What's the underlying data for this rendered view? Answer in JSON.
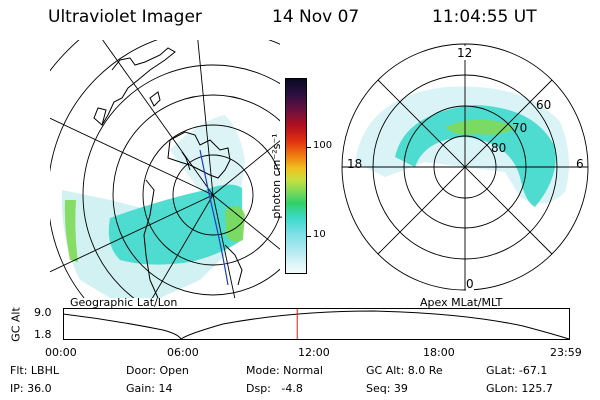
{
  "header": {
    "instrument": "Ultraviolet Imager",
    "date": "14 Nov 07",
    "time": "11:04:55 UT"
  },
  "geographic_panel": {
    "caption": "Geographic Lat/Lon"
  },
  "colorbar": {
    "unit_label": "photon cm⁻²s⁻¹",
    "tick_labels": [
      "100",
      "10"
    ]
  },
  "polar_panel": {
    "caption": "Apex MLat/MLT",
    "mlt_labels": {
      "top": "12",
      "left": "18",
      "right": "6",
      "bottom": "0"
    },
    "lat_labels": [
      "60",
      "70",
      "80"
    ]
  },
  "altitude_plot": {
    "ylabel": "GC Alt",
    "ytick_labels": [
      "9.0",
      "1.8"
    ],
    "xtick_labels": [
      "00:00",
      "06:00",
      "12:00",
      "18:00",
      "23:59"
    ],
    "current_time_fraction": 0.4618
  },
  "info_rows": [
    [
      {
        "text": "Flt: LBHL"
      },
      {
        "text": "Door: Open"
      },
      {
        "text": "Mode: Normal"
      },
      {
        "text": "GC Alt: 8.0 Re"
      },
      {
        "text": "GLat: -67.1"
      }
    ],
    [
      {
        "text": "IP: 36.0"
      },
      {
        "text": "Gain: 14"
      },
      {
        "text": "Dsp:   -4.8"
      },
      {
        "text": "Seq: 39"
      },
      {
        "text": "GLon: 125.7"
      }
    ]
  ],
  "colors": {
    "aurora": "#3fd9cc",
    "aurora_bright": "#7ed957",
    "aurora_faint": "#c9eef0",
    "current_time": "#e01818",
    "spacecraft_track": "#1e3cc8"
  }
}
